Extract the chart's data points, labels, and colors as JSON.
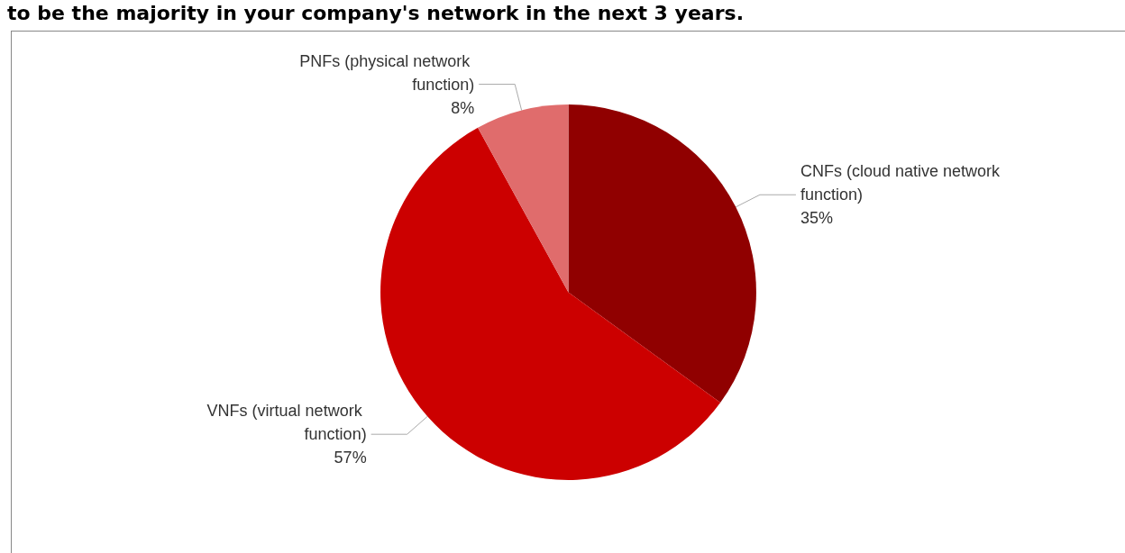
{
  "chart_data": {
    "type": "pie",
    "title": "to be the majority in your company's network in the next 3 years.",
    "categories": [
      "CNFs (cloud native network function)",
      "VNFs (virtual network function)",
      "PNFs (physical network function)"
    ],
    "values": [
      35,
      57,
      8
    ],
    "value_labels": [
      "35%",
      "57%",
      "8%"
    ],
    "colors": [
      "#900000",
      "#cc0000",
      "#e06c6c"
    ],
    "legend": false
  }
}
